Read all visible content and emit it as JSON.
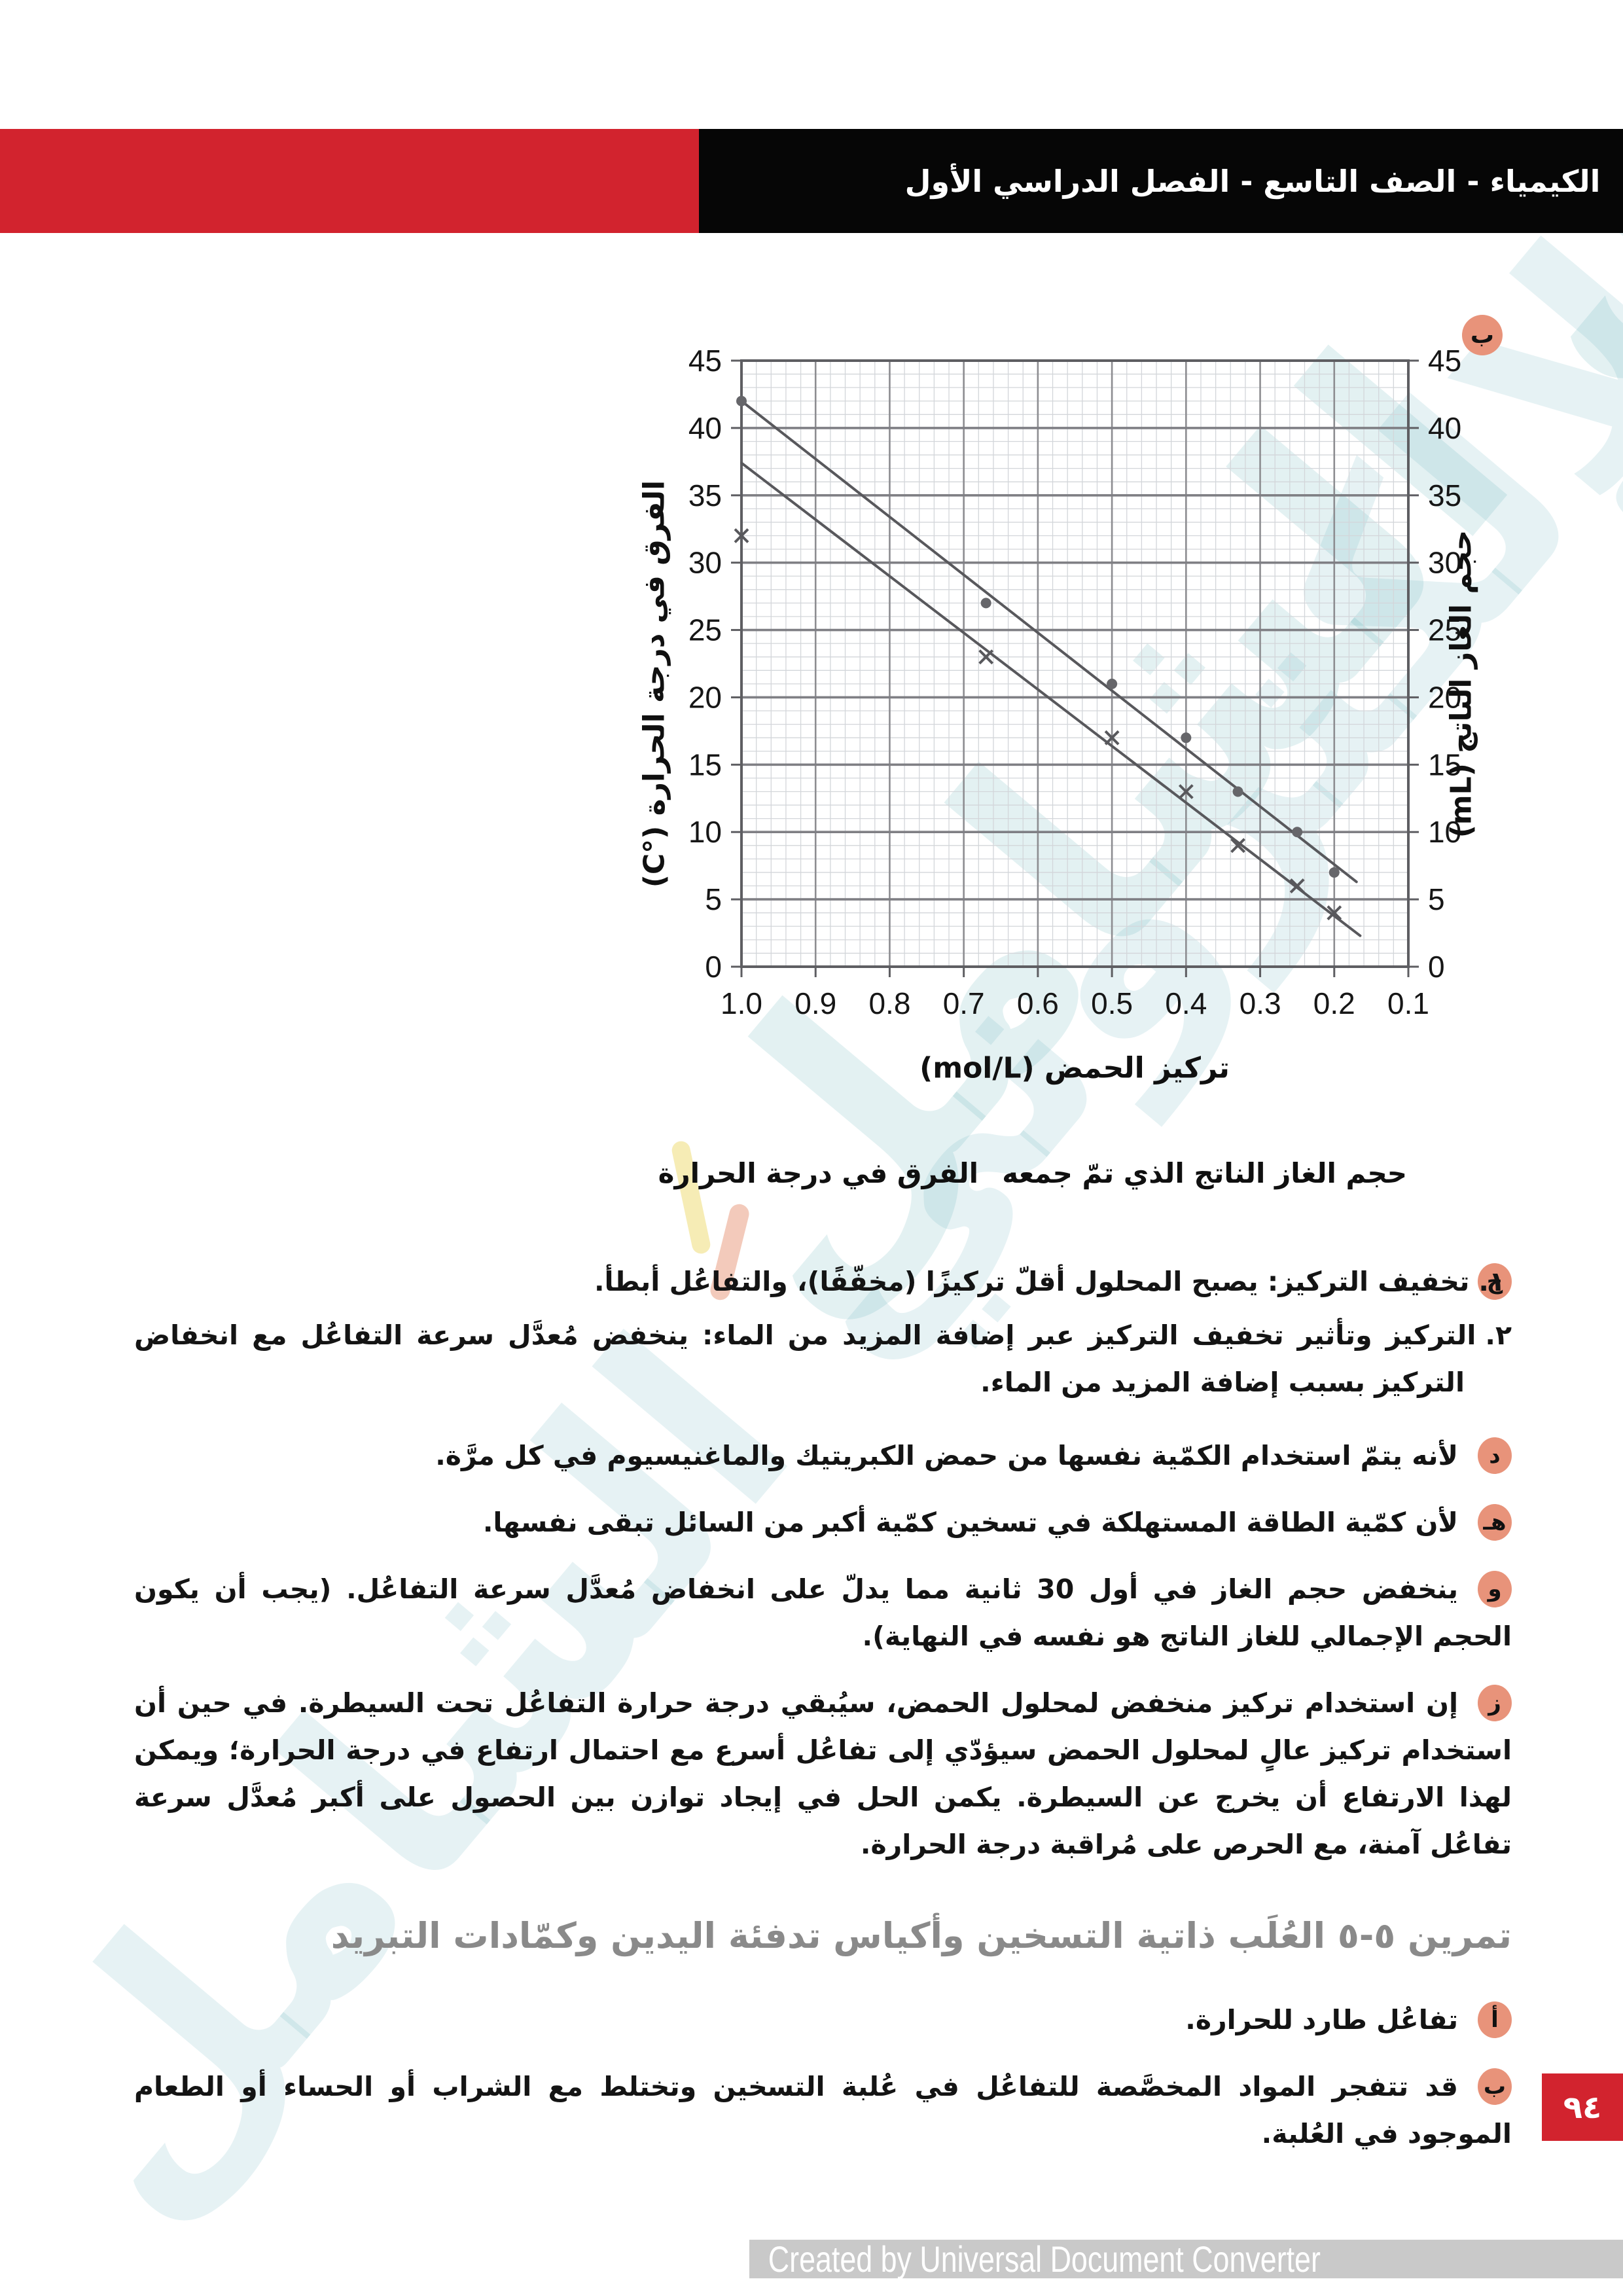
{
  "header": {
    "title": "الكيمياء - الصف التاسع - الفصل الدراسي الأول"
  },
  "chart_badge": "ب",
  "chart_data": {
    "type": "scatter",
    "xlabel": "تركيز الحمض (mol/L)",
    "ylabel_left": "الفرق في درجة الحرارة (°C)",
    "ylabel_right": "حجم الغاز الناتج (mL)",
    "xlim": [
      1.0,
      0.1
    ],
    "ylim": [
      0,
      45
    ],
    "x_ticks": [
      1.0,
      0.9,
      0.8,
      0.7,
      0.6,
      0.5,
      0.4,
      0.3,
      0.2,
      0.1
    ],
    "x_tick_labels": [
      "1.0",
      "0.9",
      "0.8",
      "0.7",
      "0.6",
      "0.5",
      "0.4",
      "0.3",
      "0.2",
      "0.1"
    ],
    "y_ticks": [
      0,
      5,
      10,
      15,
      20,
      25,
      30,
      35,
      40,
      45
    ],
    "grid": {
      "major": true,
      "minor": true
    },
    "series": [
      {
        "name": "حجم الغاز الناتج الذي تمّ جمعه",
        "marker": "circle",
        "points": [
          [
            1.0,
            42
          ],
          [
            0.67,
            27
          ],
          [
            0.5,
            21
          ],
          [
            0.4,
            17
          ],
          [
            0.33,
            13
          ],
          [
            0.25,
            10
          ],
          [
            0.2,
            7
          ]
        ],
        "trendline": [
          [
            1.0,
            42
          ],
          [
            0.17,
            6.3
          ]
        ]
      },
      {
        "name": "الفرق في درجة الحرارة",
        "marker": "x",
        "points": [
          [
            1.0,
            32
          ],
          [
            0.67,
            23
          ],
          [
            0.5,
            17
          ],
          [
            0.4,
            13
          ],
          [
            0.33,
            9
          ],
          [
            0.25,
            6
          ],
          [
            0.2,
            4
          ]
        ],
        "trendline": [
          [
            1.0,
            37.4
          ],
          [
            0.165,
            2.3
          ]
        ]
      }
    ]
  },
  "legend": {
    "gas": "حجم الغاز الناتج الذي تمّ جمعه",
    "temp": "الفرق في درجة الحرارة"
  },
  "answers": [
    {
      "badge": "ج",
      "items": [
        {
          "num": "١.",
          "text": "تخفيف التركيز: يصبح المحلول أقلّ تركيزًا (مخفّفًا)، والتفاعُل أبطأ."
        },
        {
          "num": "٢.",
          "text": "التركيز وتأثير تخفيف التركيز عبر إضافة المزيد من الماء: ينخفض مُعدَّل سرعة التفاعُل مع انخفاض التركيز بسبب إضافة المزيد من الماء."
        }
      ]
    },
    {
      "badge": "د",
      "text": "لأنه يتمّ استخدام الكمّية نفسها من حمض الكبريتيك والماغنيسيوم في كل مرَّة."
    },
    {
      "badge": "هـ",
      "text": "لأن كمّية الطاقة المستهلكة في تسخين كمّية أكبر من السائل تبقى نفسها."
    },
    {
      "badge": "و",
      "text": "ينخفض حجم الغاز في أول 30 ثانية مما يدلّ على انخفاض مُعدَّل سرعة التفاعُل. (يجب أن يكون الحجم الإجمالي للغاز الناتج هو نفسه في النهاية)."
    },
    {
      "badge": "ز",
      "text": "إن استخدام تركيز منخفض لمحلول الحمض، سيُبقي درجة حرارة التفاعُل تحت السيطرة. في حين أن استخدام تركيز عالٍ لمحلول الحمض سيؤدّي إلى تفاعُل أسرع مع احتمال ارتفاع في درجة الحرارة؛ ويمكن لهذا الارتفاع أن يخرج عن السيطرة. يكمن الحل في إيجاد توازن بين الحصول على أكبر مُعدَّل سرعة تفاعُل آمنة، مع الحرص على مُراقبة درجة الحرارة."
    }
  ],
  "exercise": {
    "title": "تمرين ٥-٥  العُلَب ذاتية التسخين وأكياس تدفئة اليدين وكمّادات التبريد",
    "answers": [
      {
        "badge": "أ",
        "text": "تفاعُل طارد للحرارة."
      },
      {
        "badge": "ب",
        "text": "قد تتفجر المواد المخصَّصة للتفاعُل في عُلبة التسخين وتختلط مع الشراب أو الحساء أو الطعام الموجود في العُلبة."
      }
    ]
  },
  "page_number": "٩٤",
  "footer": "Created by Universal Document Converter",
  "watermark": "المعلم الإلكتروني الشامل",
  "colors": {
    "accent_red": "#d2232e",
    "header_black": "#060606",
    "badge_salmon": "#e8937a",
    "title_gray": "#8a8a8a",
    "footer_bg": "#c9c9c9",
    "chart": {
      "minor": "#d3d6da",
      "majorV": "#8d8d91",
      "majorH": "#7f7f84",
      "frame": "#5e5e62",
      "line": "#58585c",
      "point": "#66666a",
      "tick_text": "#161616"
    }
  }
}
